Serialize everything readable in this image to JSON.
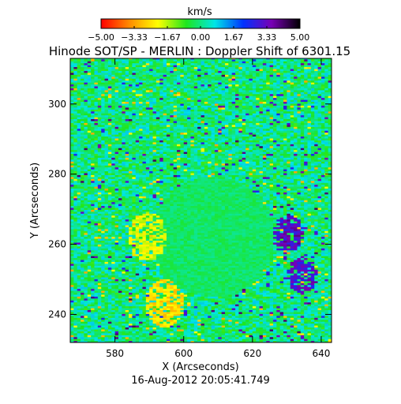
{
  "chart_data": {
    "type": "heatmap",
    "title": "Hinode SOT/SP - MERLIN : Doppler Shift of 6301.15",
    "xlabel": "X (Arcseconds)",
    "ylabel": "Y (Arcseconds)",
    "timestamp": "16-Aug-2012 20:05:41.749",
    "xlim": [
      567,
      643
    ],
    "ylim": [
      232,
      313
    ],
    "x_ticks": [
      "580",
      "600",
      "620",
      "640"
    ],
    "x_tick_values": [
      580,
      600,
      620,
      640
    ],
    "y_ticks": [
      "240",
      "260",
      "280",
      "300"
    ],
    "y_tick_values": [
      240,
      260,
      280,
      300
    ],
    "grid": false,
    "colorbar": {
      "label": "km/s",
      "range": [
        -5.0,
        5.0
      ],
      "ticks": [
        "−5.00",
        "−3.33",
        "−1.67",
        "0.00",
        "1.67",
        "3.33",
        "5.00"
      ],
      "tick_values": [
        -5.0,
        -3.333,
        -1.667,
        0.0,
        1.667,
        3.333,
        5.0
      ],
      "colors": [
        "#ff0000",
        "#ff8c00",
        "#ffff00",
        "#1ee61e",
        "#00e6e6",
        "#0032ff",
        "#7800b4",
        "#000000"
      ]
    },
    "features": [
      {
        "kind": "umbra",
        "x": 608,
        "y": 262,
        "radius": 18,
        "value": -0.2
      },
      {
        "kind": "redshift-patch",
        "x": 630,
        "y": 263,
        "value": 3.6
      },
      {
        "kind": "redshift-patch",
        "x": 634,
        "y": 251,
        "value": 3.4
      },
      {
        "kind": "blueshift-patch",
        "x": 594,
        "y": 243,
        "value": -2.8
      },
      {
        "kind": "blueshift-patch",
        "x": 589,
        "y": 262,
        "value": -2.2
      }
    ]
  }
}
